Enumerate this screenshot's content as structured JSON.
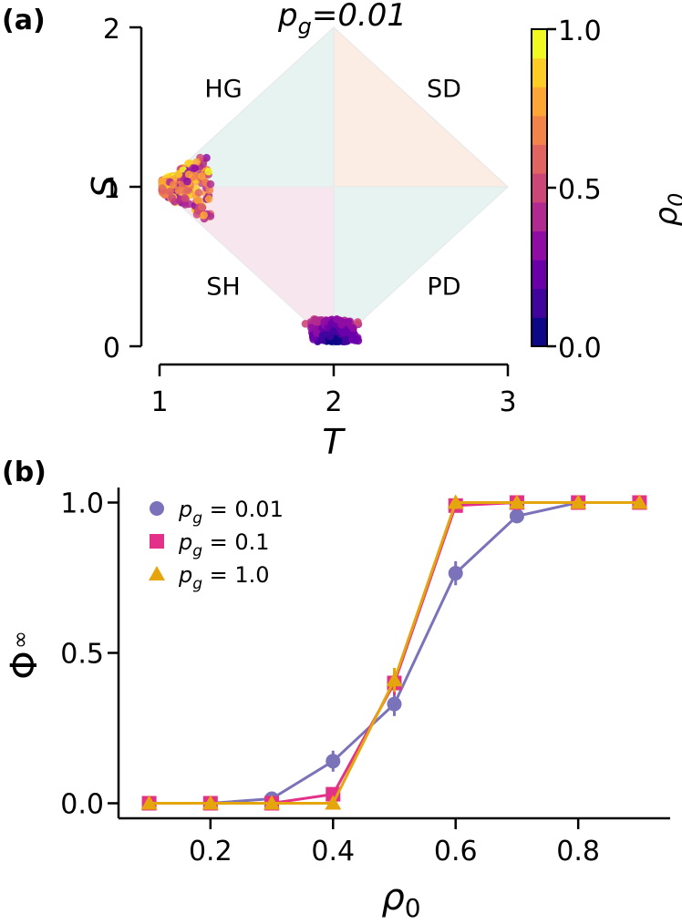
{
  "chart_data": [
    {
      "panel_label": "(a)",
      "type": "scatter",
      "title_symbol": "p",
      "title_sub": "g",
      "title_value": "=0.01",
      "xlabel": "T",
      "ylabel": "S",
      "xlim": [
        1,
        3
      ],
      "ylim": [
        0,
        2
      ],
      "x_ticks": [
        "1",
        "2",
        "3"
      ],
      "y_ticks": [
        "0",
        "1",
        "2"
      ],
      "regions": [
        {
          "label": "HG",
          "color": "#e6f3f1",
          "polygon": [
            [
              1,
              1
            ],
            [
              2,
              1
            ],
            [
              2,
              2
            ]
          ]
        },
        {
          "label": "SD",
          "color": "#fbece4",
          "polygon": [
            [
              2,
              1
            ],
            [
              3,
              1
            ],
            [
              2,
              2
            ]
          ]
        },
        {
          "label": "SH",
          "color": "#f8e6ee",
          "polygon": [
            [
              1,
              1
            ],
            [
              2,
              1
            ],
            [
              2,
              0
            ]
          ]
        },
        {
          "label": "PD",
          "color": "#e6f3f1",
          "polygon": [
            [
              2,
              1
            ],
            [
              3,
              1
            ],
            [
              2,
              0
            ]
          ]
        }
      ],
      "clusters": [
        {
          "center": [
            1.03,
            1.0
          ],
          "extent_x": [
            1.0,
            1.28
          ],
          "extent_y": [
            0.8,
            1.2
          ],
          "rho0_range": [
            0.3,
            1.0
          ]
        },
        {
          "center": [
            2.0,
            0.08
          ],
          "extent_x": [
            1.84,
            2.18
          ],
          "extent_y": [
            0.03,
            0.17
          ],
          "rho0_range": [
            0.0,
            0.5
          ]
        }
      ],
      "colorbar": {
        "label_symbol": "ρ",
        "label_sub": "0",
        "range": [
          0.0,
          1.0
        ],
        "ticks": [
          "0.0",
          "0.5",
          "1.0"
        ],
        "colors": [
          "#0d0887",
          "#41049d",
          "#6a00a8",
          "#8f0da4",
          "#b12a90",
          "#cc4778",
          "#e16462",
          "#f2844b",
          "#fca636",
          "#fcce25",
          "#f0f921"
        ]
      }
    },
    {
      "panel_label": "(b)",
      "type": "line",
      "xlabel_symbol": "ρ",
      "xlabel_sub": "0",
      "ylabel_main": "Φ",
      "ylabel_sup": "∞",
      "xlim": [
        0.05,
        0.95
      ],
      "ylim": [
        -0.05,
        1.05
      ],
      "x_ticks": [
        "0.2",
        "0.4",
        "0.6",
        "0.8"
      ],
      "y_ticks": [
        "0.0",
        "0.5",
        "1.0"
      ],
      "x": [
        0.1,
        0.2,
        0.3,
        0.4,
        0.5,
        0.6,
        0.7,
        0.8,
        0.9
      ],
      "series": [
        {
          "legend_symbol": "p",
          "legend_sub": "g",
          "legend_value": " = 0.01",
          "color": "#7b73b9",
          "marker": "circle",
          "values": [
            0.0,
            0.0,
            0.015,
            0.14,
            0.33,
            0.765,
            0.955,
            1.0,
            1.0
          ],
          "errors": [
            0,
            0,
            0.01,
            0.035,
            0.04,
            0.04,
            0.015,
            0,
            0
          ]
        },
        {
          "legend_symbol": "p",
          "legend_sub": "g",
          "legend_value": " = 0.1",
          "color": "#e3318a",
          "marker": "square",
          "values": [
            0.0,
            0.0,
            0.0,
            0.03,
            0.4,
            0.99,
            1.0,
            1.0,
            1.0
          ],
          "errors": [
            0,
            0,
            0,
            0.01,
            0.04,
            0.01,
            0,
            0,
            0
          ]
        },
        {
          "legend_symbol": "p",
          "legend_sub": "g",
          "legend_value": " = 1.0",
          "color": "#e5a50d",
          "marker": "triangle",
          "values": [
            0.0,
            0.0,
            0.0,
            0.0,
            0.41,
            1.0,
            1.0,
            1.0,
            1.0
          ],
          "errors": [
            0,
            0,
            0,
            0,
            0.04,
            0,
            0,
            0,
            0
          ]
        }
      ]
    }
  ]
}
